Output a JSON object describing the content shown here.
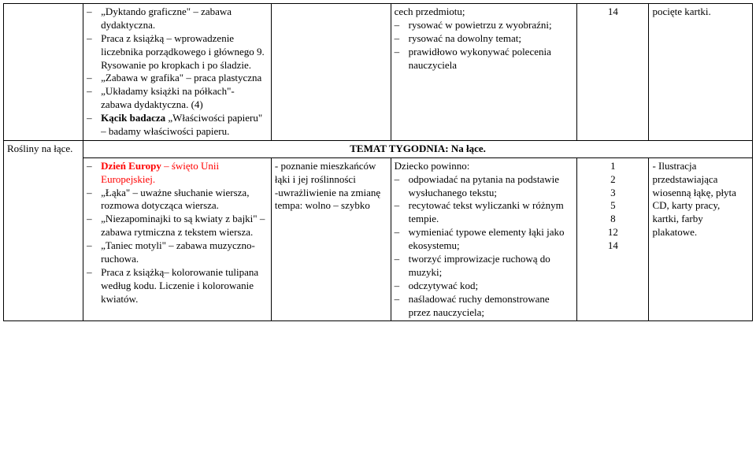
{
  "row1": {
    "col2_items": [
      {
        "text": "„Dyktando graficzne\" – zabawa dydaktyczna."
      },
      {
        "text": "Praca z książką – wprowadzenie liczebnika porządkowego i głównego 9. Rysowanie po kropkach i po śladzie."
      },
      {
        "text": "„Zabawa w grafika\" – praca plastyczna"
      },
      {
        "text": "„Układamy książki na półkach\"- zabawa dydaktyczna. (4)"
      },
      {
        "bold": true,
        "prefix": "Kącik badacza",
        "rest": " „Właściwości papieru\" – badamy właściwości papieru."
      }
    ],
    "col4_lead": "cech przedmiotu;",
    "col4_items": [
      "rysować w powietrzu z wyobraźni;",
      "rysować na dowolny temat;",
      "prawidłowo wykonywać polecenia nauczyciela"
    ],
    "col5": "14",
    "col6": "pocięte kartki."
  },
  "section_header": "TEMAT TYGODNIA: Na łące.",
  "row2": {
    "col1": "Rośliny na łące.",
    "col2_items": [
      {
        "red_bold": true,
        "prefix": "Dzień Europy",
        "rest": " – święto Unii Europejskiej."
      },
      {
        "text": "„Łąka\" – uważne słuchanie wiersza, rozmowa dotycząca wiersza."
      },
      {
        "text": "„Niezapominajki to są kwiaty z bajki\" – zabawa rytmiczna z tekstem wiersza."
      },
      {
        "text": "„Taniec motyli\" – zabawa muzyczno-ruchowa."
      },
      {
        "text": "Praca z książką– kolorowanie tulipana według kodu. Liczenie i kolorowanie kwiatów."
      }
    ],
    "col3_lines": [
      "- poznanie mieszkańców łąki i jej roślinności",
      "-uwrażliwienie na zmianę tempa: wolno – szybko"
    ],
    "col4_lead": "Dziecko powinno:",
    "col4_items": [
      "odpowiadać na pytania na podstawie wysłuchanego tekstu;",
      "recytować tekst wyliczanki w różnym tempie.",
      "wymieniać typowe elementy łąki jako ekosystemu;",
      "tworzyć improwizacje ruchową do muzyki;",
      "odczytywać kod;",
      "naśladować ruchy demonstrowane przez nauczyciela;"
    ],
    "col5_nums": [
      "1",
      "2",
      "3",
      "5",
      "8",
      "12",
      "14"
    ],
    "col6": "- Ilustracja przedstawiająca wiosenną łąkę, płyta CD, karty pracy, kartki, farby plakatowe."
  }
}
